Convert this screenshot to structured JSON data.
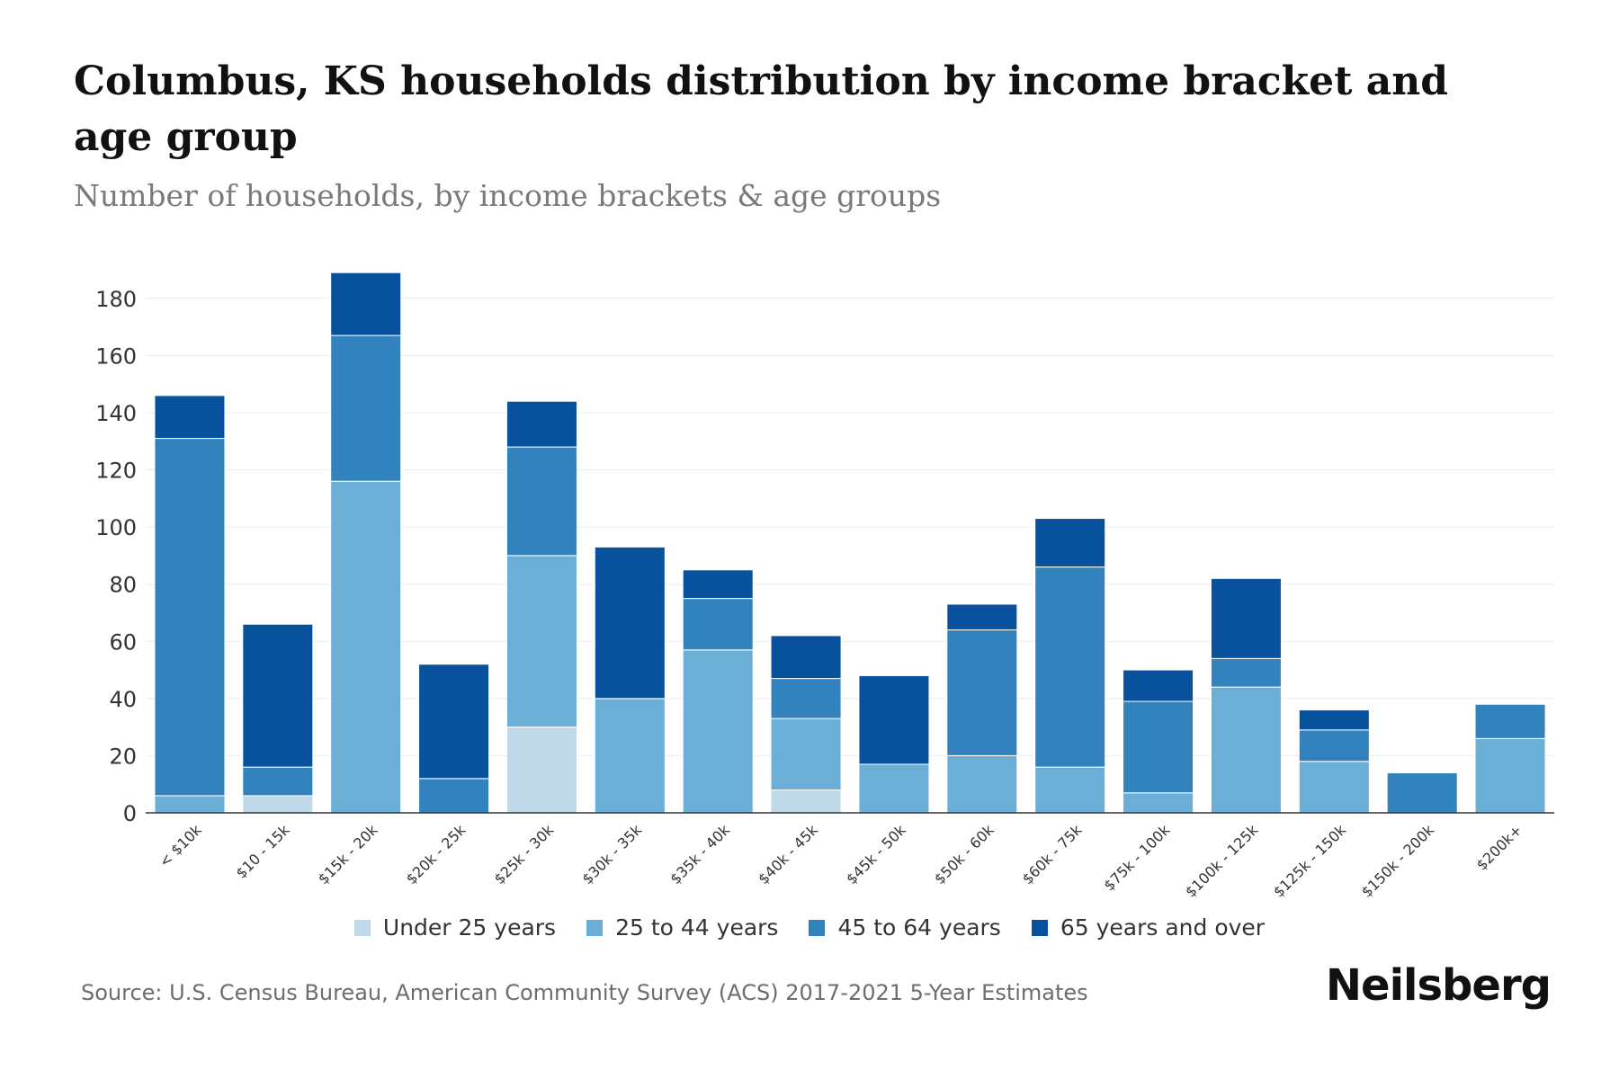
{
  "title": "Columbus, KS households distribution by income bracket and age group",
  "subtitle": "Number of households, by income brackets & age groups",
  "source": "Source: U.S. Census Bureau, American Community Survey (ACS) 2017-2021 5-Year Estimates",
  "brand": "Neilsberg",
  "chart_data": {
    "type": "bar",
    "stacked": true,
    "categories": [
      "< $10k",
      "$10 - 15k",
      "$15k - 20k",
      "$20k - 25k",
      "$25k - 30k",
      "$30k - 35k",
      "$35k - 40k",
      "$40k - 45k",
      "$45k - 50k",
      "$50k - 60k",
      "$60k - 75k",
      "$75k - 100k",
      "$100k - 125k",
      "$125k - 150k",
      "$150k - 200k",
      "$200k+"
    ],
    "series": [
      {
        "name": "Under 25 years",
        "color": "#bfd9e8",
        "values": [
          0,
          6,
          0,
          0,
          30,
          0,
          0,
          8,
          0,
          0,
          0,
          0,
          0,
          0,
          0,
          0
        ]
      },
      {
        "name": "25 to 44 years",
        "color": "#6baed6",
        "values": [
          6,
          0,
          116,
          0,
          60,
          40,
          57,
          25,
          17,
          20,
          16,
          7,
          44,
          18,
          0,
          26
        ]
      },
      {
        "name": "45 to 64 years",
        "color": "#3282bd",
        "values": [
          125,
          10,
          51,
          12,
          38,
          0,
          18,
          14,
          0,
          44,
          70,
          32,
          10,
          11,
          14,
          12
        ]
      },
      {
        "name": "65 years and over",
        "color": "#08519c",
        "values": [
          15,
          50,
          22,
          40,
          16,
          53,
          10,
          15,
          31,
          9,
          17,
          11,
          28,
          7,
          0,
          0
        ]
      }
    ],
    "yticks": [
      0,
      20,
      40,
      60,
      80,
      100,
      120,
      140,
      160,
      180
    ],
    "ylim": [
      0,
      190
    ],
    "xlabel": "",
    "ylabel": "",
    "grid": true,
    "legend_position": "bottom"
  }
}
